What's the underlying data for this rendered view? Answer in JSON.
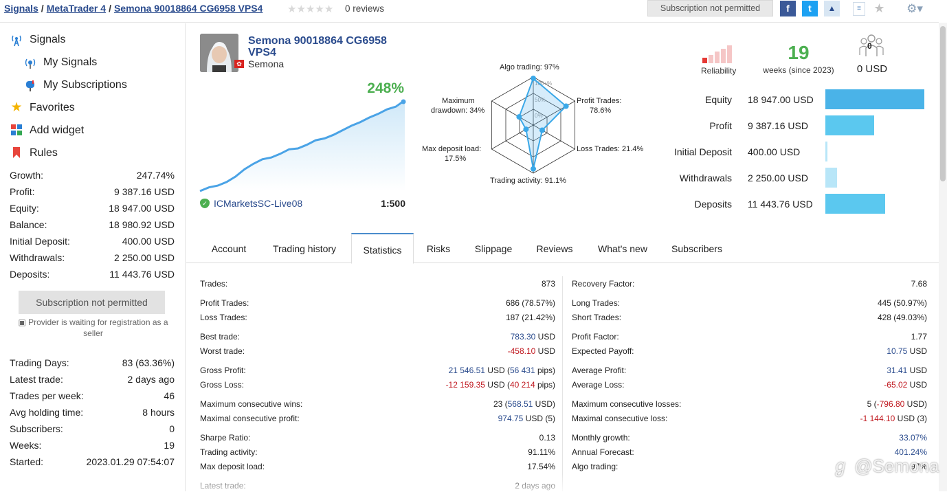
{
  "breadcrumb": {
    "signals": "Signals",
    "mt4": "MetaTrader 4",
    "current": "Semona 90018864 CG6958 VPS4"
  },
  "rating": {
    "stars": 0,
    "reviews": "0 reviews"
  },
  "topbar": {
    "subscription_button": "Subscription not permitted"
  },
  "sidebar": {
    "nav": [
      {
        "label": "Signals",
        "icon": "antenna-icon"
      },
      {
        "label": "My Signals",
        "icon": "broadcast-icon"
      },
      {
        "label": "My Subscriptions",
        "icon": "mailbox-icon"
      },
      {
        "label": "Favorites",
        "icon": "star-icon"
      },
      {
        "label": "Add widget",
        "icon": "widget-icon"
      },
      {
        "label": "Rules",
        "icon": "bookmark-icon"
      }
    ],
    "summary": [
      {
        "k": "Growth:",
        "v": "247.74%"
      },
      {
        "k": "Profit:",
        "v": "9 387.16 USD"
      },
      {
        "k": "Equity:",
        "v": "18 947.00 USD"
      },
      {
        "k": "Balance:",
        "v": "18 980.92 USD"
      },
      {
        "k": "Initial Deposit:",
        "v": "400.00 USD"
      },
      {
        "k": "Withdrawals:",
        "v": "2 250.00 USD"
      },
      {
        "k": "Deposits:",
        "v": "11 443.76 USD"
      }
    ],
    "subscription_button": "Subscription not permitted",
    "provider_note": "Provider is waiting for registration as a seller",
    "info": [
      {
        "k": "Trading Days:",
        "v": "83 (63.36%)"
      },
      {
        "k": "Latest trade:",
        "v": "2 days ago"
      },
      {
        "k": "Trades per week:",
        "v": "46"
      },
      {
        "k": "Avg holding time:",
        "v": "8 hours"
      },
      {
        "k": "Subscribers:",
        "v": "0"
      },
      {
        "k": "Weeks:",
        "v": "19"
      },
      {
        "k": "Started:",
        "v": "2023.01.29 07:54:07"
      }
    ]
  },
  "signal": {
    "name": "Semona 90018864 CG6958 VPS4",
    "author": "Semona",
    "growth": "248%",
    "broker": "ICMarketsSC-Live08",
    "leverage": "1:500",
    "growth_curve": [
      0,
      4,
      6,
      10,
      16,
      24,
      30,
      35,
      37,
      41,
      46,
      47,
      51,
      56,
      58,
      62,
      67,
      72,
      76,
      81,
      85,
      90,
      93,
      100
    ]
  },
  "radar": {
    "scale_labels": [
      "100+%",
      "50%",
      "0%"
    ],
    "labels": {
      "algo": "Algo trading: 97%",
      "profit_trades": "Profit Trades:",
      "profit_trades_v": "78.6%",
      "loss_trades": "Loss Trades: 21.4%",
      "activity": "Trading activity: 91.1%",
      "max_load": "Max deposit load:",
      "max_load_v": "17.5%",
      "max_dd": "Maximum",
      "max_dd_2": "drawdown: 34%"
    },
    "values": [
      97,
      78.6,
      21.4,
      91.1,
      17.5,
      34
    ]
  },
  "reliability": {
    "label": "Reliability"
  },
  "weeks": {
    "value": "19",
    "label": "weeks (since 2023)"
  },
  "subscribers": {
    "count": "0",
    "usd": "0 USD"
  },
  "finance": [
    {
      "label": "Equity",
      "value": "18 947.00 USD",
      "amount": 18947.0
    },
    {
      "label": "Profit",
      "value": "9 387.16 USD",
      "amount": 9387.16
    },
    {
      "label": "Initial Deposit",
      "value": "400.00 USD",
      "amount": 400.0
    },
    {
      "label": "Withdrawals",
      "value": "2 250.00 USD",
      "amount": 2250.0
    },
    {
      "label": "Deposits",
      "value": "11 443.76 USD",
      "amount": 11443.76
    }
  ],
  "tabs": [
    "Account",
    "Trading history",
    "Statistics",
    "Risks",
    "Slippage",
    "Reviews",
    "What's new",
    "Subscribers"
  ],
  "active_tab": "Statistics",
  "stats_left": [
    {
      "k": "Trades:",
      "v": "873"
    },
    {
      "k": "Profit Trades:",
      "v": "686 (78.57%)"
    },
    {
      "k": "Loss Trades:",
      "v": "187 (21.42%)"
    },
    {
      "k": "Best trade:",
      "v1": "783.30",
      "c1": "b",
      "v2": " USD"
    },
    {
      "k": "Worst trade:",
      "v1": "-458.10",
      "c1": "r",
      "v2": " USD"
    },
    {
      "k": "Gross Profit:",
      "v1": "21 546.51",
      "c1": "b",
      "v2": " USD (",
      "v3": "56 431",
      "c3": "b",
      "v4": " pips)"
    },
    {
      "k": "Gross Loss:",
      "v1": "-12 159.35",
      "c1": "r",
      "v2": " USD (",
      "v3": "40 214",
      "c3": "r",
      "v4": " pips)"
    },
    {
      "k": "Maximum consecutive wins:",
      "v1": "23 (",
      "v2": "568.51",
      "c2": "b",
      "v3": " USD)"
    },
    {
      "k": "Maximal consecutive profit:",
      "v1": "974.75",
      "c1": "b",
      "v2": " USD (5)"
    },
    {
      "k": "Sharpe Ratio:",
      "v": "0.13"
    },
    {
      "k": "Trading activity:",
      "v": "91.11%"
    },
    {
      "k": "Max deposit load:",
      "v": "17.54%"
    },
    {
      "k": "Latest trade:",
      "v": "2 days ago"
    }
  ],
  "stats_right": [
    {
      "k": "Recovery Factor:",
      "v": "7.68"
    },
    {
      "k": "Long Trades:",
      "v": "445 (50.97%)"
    },
    {
      "k": "Short Trades:",
      "v": "428 (49.03%)"
    },
    {
      "k": "Profit Factor:",
      "v": "1.77"
    },
    {
      "k": "Expected Payoff:",
      "v1": "10.75",
      "c1": "b",
      "v2": " USD"
    },
    {
      "k": "Average Profit:",
      "v1": "31.41",
      "c1": "b",
      "v2": " USD"
    },
    {
      "k": "Average Loss:",
      "v1": "-65.02",
      "c1": "r",
      "v2": " USD"
    },
    {
      "k": "Maximum consecutive losses:",
      "v1": "5 (",
      "v2": "-796.80",
      "c2": "r",
      "v3": " USD)"
    },
    {
      "k": "Maximal consecutive loss:",
      "v1": "-1 144.10",
      "c1": "r",
      "v2": " USD (3)"
    },
    {
      "k": "Monthly growth:",
      "v1": "33.07%",
      "c1": "b"
    },
    {
      "k": "Annual Forecast:",
      "v1": "401.24%",
      "c1": "b"
    },
    {
      "k": "Algo trading:",
      "v": "97%"
    }
  ],
  "watermark": "@Semona"
}
